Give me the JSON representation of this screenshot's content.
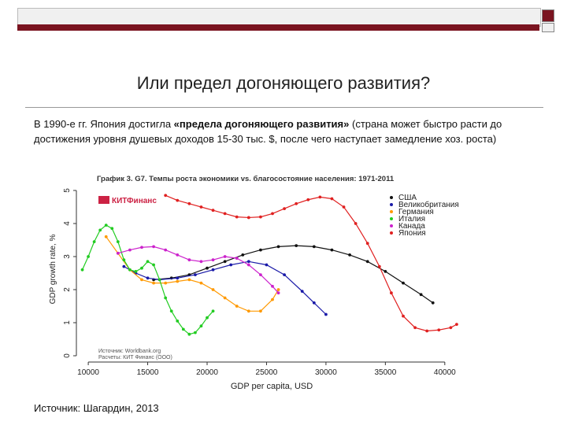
{
  "slide": {
    "title": "Или предел догоняющего развития?",
    "text_part1": "В 1990-е гг. Япония достигла ",
    "text_bold": "«предела догоняющего развития»",
    "text_part2": " (страна может быстро расти до достижения уровня душевых доходов 15-30 тыс. $, после чего наступает замедление хоз. роста)",
    "source": "Источник: Шагардин, 2013"
  },
  "colors": {
    "band": "#7a1420"
  },
  "chart_data": {
    "type": "line",
    "title": "График 3. G7. Темпы роста экономики vs. благосостояние населения: 1971-2011",
    "brand": "КИТФинанс",
    "xlabel": "GDP per capita, USD",
    "ylabel": "GDP growth rate, %",
    "xlim": [
      9000,
      42000
    ],
    "ylim": [
      0,
      5
    ],
    "xticks": [
      10000,
      15000,
      20000,
      25000,
      30000,
      35000,
      40000
    ],
    "yticks": [
      0,
      1,
      2,
      3,
      4,
      5
    ],
    "source_note": "Источник: Worldbank.org\nРасчеты: КИТ Финанс (ООО)",
    "legend_position": "top-right",
    "series": [
      {
        "name": "США",
        "color": "#111111",
        "x": [
          15500,
          17000,
          18500,
          20000,
          21500,
          23000,
          24500,
          26000,
          27500,
          29000,
          30500,
          32000,
          33500,
          35000,
          36500,
          38000,
          39000
        ],
        "y": [
          2.3,
          2.35,
          2.45,
          2.65,
          2.85,
          3.05,
          3.2,
          3.3,
          3.33,
          3.3,
          3.2,
          3.05,
          2.85,
          2.55,
          2.2,
          1.85,
          1.6
        ]
      },
      {
        "name": "Великобритания",
        "color": "#1a1aa8",
        "x": [
          13000,
          14000,
          15000,
          16000,
          17500,
          19000,
          20500,
          22000,
          23500,
          25000,
          26500,
          28000,
          29000,
          30000
        ],
        "y": [
          2.7,
          2.5,
          2.35,
          2.3,
          2.35,
          2.45,
          2.6,
          2.75,
          2.85,
          2.75,
          2.45,
          1.95,
          1.6,
          1.25
        ]
      },
      {
        "name": "Германия",
        "color": "#ff9900",
        "x": [
          11500,
          12500,
          13500,
          14500,
          15500,
          16500,
          17500,
          18500,
          19500,
          20500,
          21500,
          22500,
          23500,
          24500,
          25500,
          26000
        ],
        "y": [
          3.6,
          3.1,
          2.6,
          2.3,
          2.2,
          2.2,
          2.25,
          2.3,
          2.2,
          2.0,
          1.75,
          1.5,
          1.35,
          1.35,
          1.7,
          2.0
        ]
      },
      {
        "name": "Италия",
        "color": "#22cc22",
        "x": [
          9500,
          10000,
          10500,
          11000,
          11500,
          12000,
          12500,
          13000,
          13500,
          14000,
          14500,
          15000,
          15500,
          16000,
          16500,
          17000,
          17500,
          18000,
          18500,
          19000,
          19500,
          20000,
          20500
        ],
        "y": [
          2.6,
          3.0,
          3.45,
          3.8,
          3.95,
          3.85,
          3.45,
          2.9,
          2.6,
          2.55,
          2.65,
          2.85,
          2.75,
          2.3,
          1.75,
          1.35,
          1.05,
          0.8,
          0.65,
          0.7,
          0.9,
          1.15,
          1.35
        ]
      },
      {
        "name": "Канада",
        "color": "#cc22cc",
        "x": [
          12500,
          13500,
          14500,
          15500,
          16500,
          17500,
          18500,
          19500,
          20500,
          21500,
          22500,
          23500,
          24500,
          25500,
          26000
        ],
        "y": [
          3.1,
          3.2,
          3.28,
          3.3,
          3.2,
          3.05,
          2.9,
          2.85,
          2.9,
          3.0,
          2.95,
          2.75,
          2.45,
          2.1,
          1.9
        ]
      },
      {
        "name": "Япония",
        "color": "#e02020",
        "x": [
          16500,
          17500,
          18500,
          19500,
          20500,
          21500,
          22500,
          23500,
          24500,
          25500,
          26500,
          27500,
          28500,
          29500,
          30500,
          31500,
          32500,
          33500,
          34500,
          35500,
          36500,
          37500,
          38500,
          39500,
          40500,
          41000
        ],
        "y": [
          4.85,
          4.7,
          4.6,
          4.5,
          4.4,
          4.3,
          4.2,
          4.18,
          4.2,
          4.3,
          4.45,
          4.6,
          4.72,
          4.8,
          4.75,
          4.5,
          4.0,
          3.4,
          2.7,
          1.9,
          1.2,
          0.85,
          0.75,
          0.78,
          0.85,
          0.95
        ]
      }
    ]
  }
}
